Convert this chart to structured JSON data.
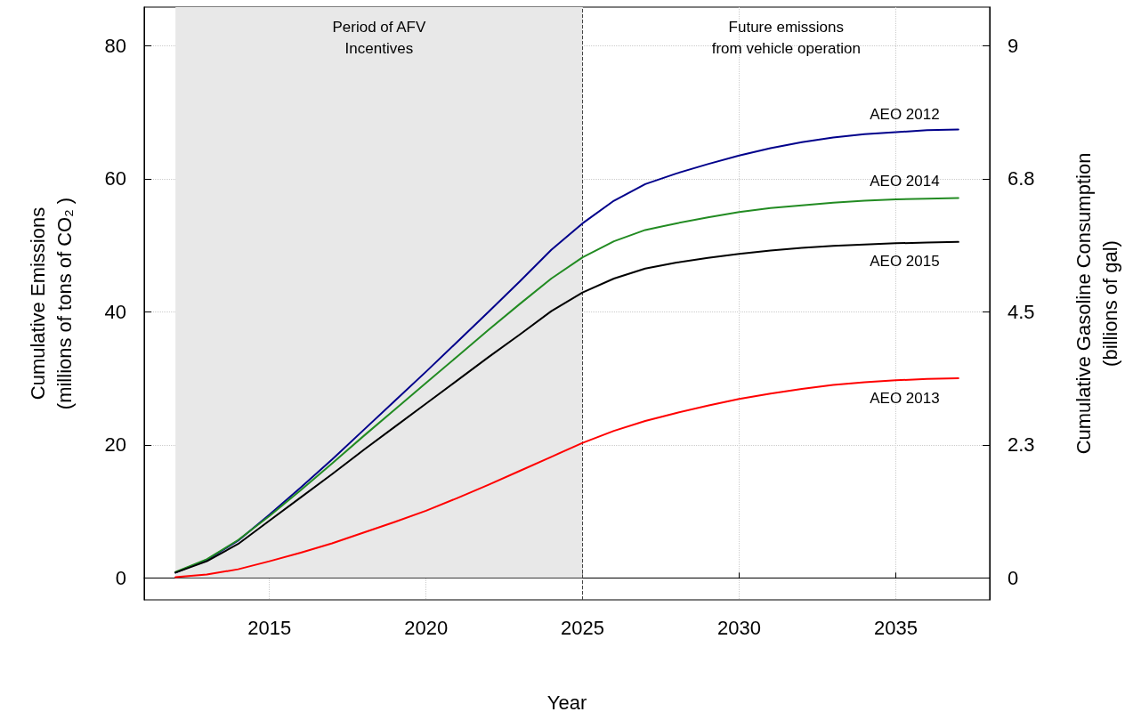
{
  "chart_data": {
    "type": "line",
    "xlabel": "Year",
    "ylabel": "Cumulative Emissions\n(millions of tons of CO₂ )",
    "y2label": "Cumulative Gasoline Consumption\n(billions of gal)",
    "x": [
      2012,
      2013,
      2014,
      2015,
      2016,
      2017,
      2018,
      2019,
      2020,
      2021,
      2022,
      2023,
      2024,
      2025,
      2026,
      2027,
      2028,
      2029,
      2030,
      2031,
      2032,
      2033,
      2034,
      2035,
      2036,
      2037
    ],
    "series": [
      {
        "name": "AEO 2012",
        "color": "#00008b",
        "values": [
          0.8,
          2.7,
          5.6,
          9.5,
          13.6,
          17.8,
          22.2,
          26.6,
          31.0,
          35.5,
          40.0,
          44.6,
          49.3,
          53.3,
          56.7,
          59.2,
          60.8,
          62.2,
          63.5,
          64.6,
          65.5,
          66.2,
          66.7,
          67.0,
          67.3,
          67.4
        ]
      },
      {
        "name": "AEO 2014",
        "color": "#228b22",
        "values": [
          0.9,
          2.8,
          5.7,
          9.3,
          13.2,
          17.2,
          21.3,
          25.3,
          29.3,
          33.3,
          37.3,
          41.2,
          45.0,
          48.2,
          50.6,
          52.3,
          53.3,
          54.2,
          55.0,
          55.6,
          56.0,
          56.4,
          56.7,
          56.9,
          57.0,
          57.1
        ]
      },
      {
        "name": "AEO 2015",
        "color": "#000000",
        "values": [
          0.8,
          2.5,
          5.1,
          8.6,
          12.1,
          15.6,
          19.2,
          22.7,
          26.2,
          29.7,
          33.2,
          36.6,
          40.1,
          42.9,
          45.0,
          46.5,
          47.4,
          48.1,
          48.7,
          49.2,
          49.6,
          49.9,
          50.1,
          50.3,
          50.4,
          50.5
        ]
      },
      {
        "name": "AEO 2013",
        "color": "#ff0000",
        "values": [
          0.1,
          0.5,
          1.3,
          2.5,
          3.8,
          5.2,
          6.8,
          8.4,
          10.1,
          12.0,
          14.0,
          16.1,
          18.2,
          20.3,
          22.1,
          23.6,
          24.8,
          25.9,
          26.9,
          27.7,
          28.4,
          29.0,
          29.4,
          29.7,
          29.9,
          30.0
        ]
      }
    ],
    "xlim": [
      2011,
      2038
    ],
    "xticks": [
      2015,
      2020,
      2025,
      2030,
      2035
    ],
    "ylim": [
      -3.3,
      85.8
    ],
    "yticks": [
      0,
      20,
      40,
      60,
      80
    ],
    "y2lim": [
      -0.371,
      9.653
    ],
    "y2ticks": [
      0,
      {
        "value": 2.25,
        "label": "2.3"
      },
      4.5,
      {
        "value": 6.75,
        "label": "6.8"
      },
      9
    ],
    "bands": [
      {
        "axis": "x",
        "from": 2012,
        "to": 2025,
        "label": "Period of AFV\nIncentives",
        "color": "#e8e8e8"
      }
    ],
    "ref_lines": [
      {
        "axis": "x",
        "value": 2025,
        "color": "#444444",
        "line_style": "dashed"
      }
    ],
    "annotations": [
      "Future emissions\nfrom vehicle operation"
    ],
    "grid": true,
    "legend": false,
    "marker": "none",
    "line_style": "solid"
  }
}
